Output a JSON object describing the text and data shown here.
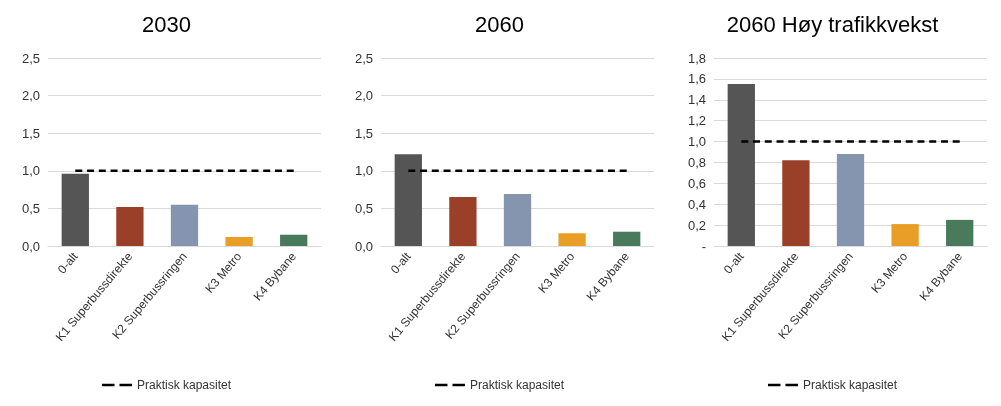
{
  "chart_data": [
    {
      "type": "bar",
      "title": "2030",
      "categories": [
        "0-alt",
        "K1 Superbussdirekte",
        "K2 Superbussringen",
        "K3 Metro",
        "K4 Bybane"
      ],
      "series": [
        {
          "values": [
            0.96,
            0.52,
            0.55,
            0.12,
            0.15
          ],
          "colors": [
            "#555555",
            "#9a4029",
            "#8595b0",
            "#e99f27",
            "#4a7a5c"
          ]
        },
        {
          "type": "line",
          "name": "Praktisk kapasitet",
          "color": "#000000",
          "values": [
            1,
            1,
            1,
            1,
            1
          ],
          "line_style": "dashed",
          "marker": "none"
        }
      ],
      "ylim": [
        0,
        2.5
      ],
      "yticks": [
        {
          "value": 0,
          "label": "0,0"
        },
        {
          "value": 0.5,
          "label": "0,5"
        },
        {
          "value": 1,
          "label": "1,0"
        },
        {
          "value": 1.5,
          "label": "1,5"
        },
        {
          "value": 2,
          "label": "2,0"
        },
        {
          "value": 2.5,
          "label": "2,5"
        }
      ],
      "grid": "y",
      "legend": "bottom"
    },
    {
      "type": "bar",
      "title": "2060",
      "categories": [
        "0-alt",
        "K1 Superbussdirekte",
        "K2 Superbussringen",
        "K3 Metro",
        "K4 Bybane"
      ],
      "series": [
        {
          "values": [
            1.22,
            0.65,
            0.69,
            0.17,
            0.19
          ],
          "colors": [
            "#555555",
            "#9a4029",
            "#8595b0",
            "#e99f27",
            "#4a7a5c"
          ]
        },
        {
          "type": "line",
          "name": "Praktisk kapasitet",
          "color": "#000000",
          "values": [
            1,
            1,
            1,
            1,
            1
          ],
          "line_style": "dashed",
          "marker": "none"
        }
      ],
      "ylim": [
        0,
        2.5
      ],
      "yticks": [
        {
          "value": 0,
          "label": "0,0"
        },
        {
          "value": 0.5,
          "label": "0,5"
        },
        {
          "value": 1,
          "label": "1,0"
        },
        {
          "value": 1.5,
          "label": "1,5"
        },
        {
          "value": 2,
          "label": "2,0"
        },
        {
          "value": 2.5,
          "label": "2,5"
        }
      ],
      "grid": "y",
      "legend": "bottom"
    },
    {
      "type": "bar",
      "title": "2060 Høy trafikkvekst",
      "categories": [
        "0-alt",
        "K1 Superbussdirekte",
        "K2 Superbussringen",
        "K3 Metro",
        "K4 Bybane"
      ],
      "series": [
        {
          "values": [
            1.55,
            0.82,
            0.88,
            0.21,
            0.25
          ],
          "colors": [
            "#555555",
            "#9a4029",
            "#8595b0",
            "#e99f27",
            "#4a7a5c"
          ]
        },
        {
          "type": "line",
          "name": "Praktisk kapasitet",
          "color": "#000000",
          "values": [
            1,
            1,
            1,
            1,
            1
          ],
          "line_style": "dashed",
          "marker": "none"
        }
      ],
      "ylim": [
        0,
        1.8
      ],
      "yticks": [
        {
          "value": 0,
          "label": "-"
        },
        {
          "value": 0.2,
          "label": "0,2"
        },
        {
          "value": 0.4,
          "label": "0,4"
        },
        {
          "value": 0.6,
          "label": "0,6"
        },
        {
          "value": 0.8,
          "label": "0,8"
        },
        {
          "value": 1,
          "label": "1,0"
        },
        {
          "value": 1.2,
          "label": "1,2"
        },
        {
          "value": 1.4,
          "label": "1,4"
        },
        {
          "value": 1.6,
          "label": "1,6"
        },
        {
          "value": 1.8,
          "label": "1,8"
        }
      ],
      "grid": "y",
      "legend": "bottom"
    }
  ]
}
